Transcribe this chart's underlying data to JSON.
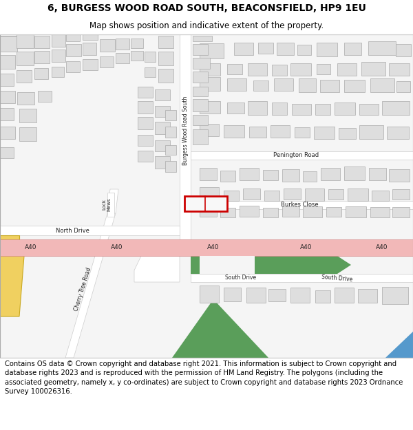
{
  "title_line1": "6, BURGESS WOOD ROAD SOUTH, BEACONSFIELD, HP9 1EU",
  "title_line2": "Map shows position and indicative extent of the property.",
  "footer_text": "Contains OS data © Crown copyright and database right 2021. This information is subject to Crown copyright and database rights 2023 and is reproduced with the permission of HM Land Registry. The polygons (including the associated geometry, namely x, y co-ordinates) are subject to Crown copyright and database rights 2023 Ordnance Survey 100026316.",
  "map_bg": "#f5f5f5",
  "road_color": "#ffffff",
  "road_outline": "#cccccc",
  "building_fill": "#dedede",
  "building_outline": "#aaaaaa",
  "a40_fill": "#f2b8b8",
  "a40_outline": "#d48888",
  "green_fill": "#5a9e5a",
  "highlight_color": "#cc0000",
  "yellow_road": "#f0d060",
  "yellow_outline": "#c8a820",
  "blue_corner": "#5599cc",
  "title_fontsize": 10,
  "subtitle_fontsize": 8.5,
  "footer_fontsize": 7.2,
  "map_label_fontsize": 6.0,
  "road_label_fontsize": 5.5
}
